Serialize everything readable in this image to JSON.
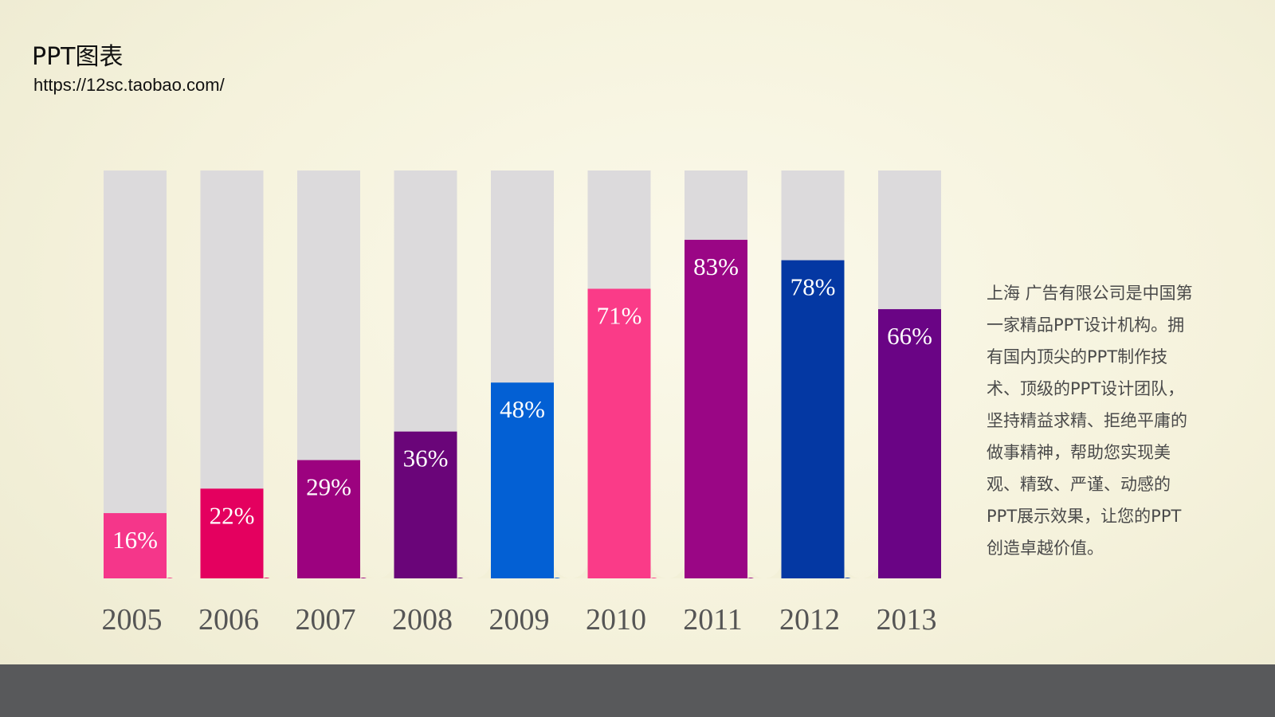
{
  "header": {
    "title": "PPT图表",
    "url": "https://12sc.taobao.com/"
  },
  "description": "上海  广告有限公司是中国第一家精品PPT设计机构。拥有国内顶尖的PPT制作技术、顶级的PPT设计团队，  坚持精益求精、拒绝平庸的做事精神，帮助您实现美观、精致、严谨、动感的PPT展示效果，让您的PPT创造卓越价值。",
  "chart_data": {
    "type": "bar",
    "categories": [
      "2005",
      "2006",
      "2007",
      "2008",
      "2009",
      "2010",
      "2011",
      "2012",
      "2013"
    ],
    "values": [
      16,
      22,
      29,
      36,
      48,
      71,
      83,
      78,
      66
    ],
    "value_labels": [
      "16%",
      "22%",
      "29%",
      "36%",
      "48%",
      "71%",
      "83%",
      "78%",
      "66%"
    ],
    "ylim": [
      0,
      100
    ],
    "title": "",
    "xlabel": "",
    "ylabel": "",
    "grid": false,
    "legend": "none",
    "track_color": "#dcdadc",
    "colors": [
      "#f5368a",
      "#e4005f",
      "#9c027f",
      "#6a0579",
      "#0360d4",
      "#fa3b88",
      "#9a0685",
      "#0438a3",
      "#6a0485"
    ]
  }
}
